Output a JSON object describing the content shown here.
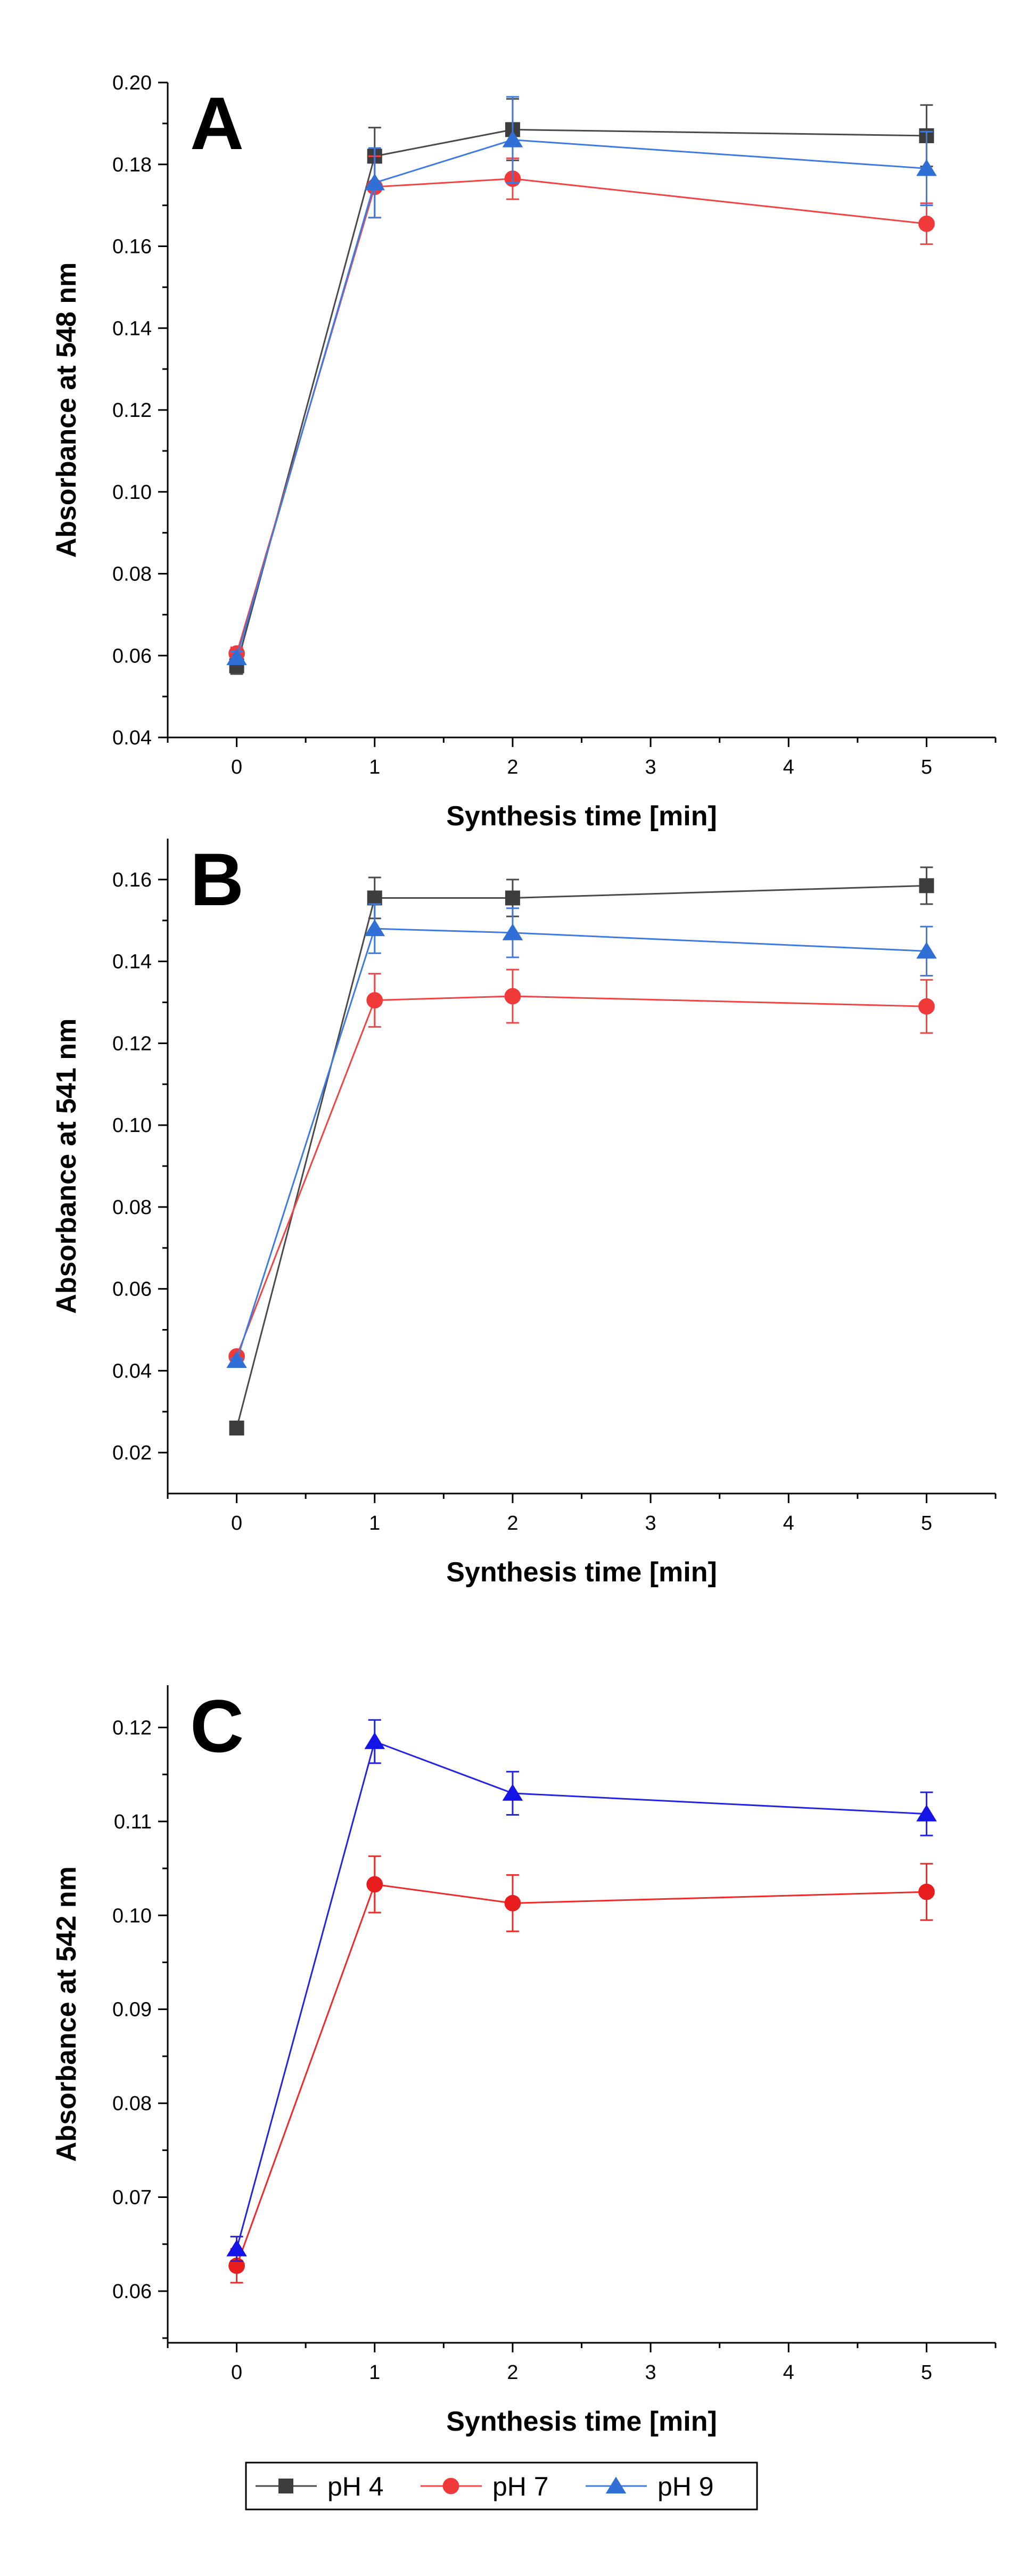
{
  "chart_data": [
    {
      "type": "line",
      "panel_label": "A",
      "xlabel": "Synthesis time [min]",
      "ylabel": "Absorbance at 548 nm",
      "xlim": [
        -0.5,
        5.5
      ],
      "ylim": [
        0.04,
        0.2
      ],
      "x_ticks": [
        0,
        1,
        2,
        3,
        4,
        5
      ],
      "y_ticks": [
        0.04,
        0.06,
        0.08,
        0.1,
        0.12,
        0.14,
        0.16,
        0.18,
        0.2
      ],
      "x_tick_labels": [
        "0",
        "1",
        "2",
        "3",
        "4",
        "5"
      ],
      "y_tick_labels": [
        "0.04",
        "0.06",
        "0.08",
        "0.10",
        "0.12",
        "0.14",
        "0.16",
        "0.18",
        "0.20"
      ],
      "x": [
        0,
        1,
        2,
        5
      ],
      "series": [
        {
          "key": "ph4",
          "values": [
            0.0575,
            0.182,
            0.1885,
            0.187
          ],
          "errors": [
            0.002,
            0.007,
            0.0075,
            0.0075
          ]
        },
        {
          "key": "ph7",
          "values": [
            0.0605,
            0.1745,
            0.1765,
            0.1655
          ],
          "errors": [
            0.0015,
            0.0075,
            0.005,
            0.005
          ]
        },
        {
          "key": "ph9",
          "values": [
            0.0595,
            0.1755,
            0.186,
            0.179
          ],
          "errors": [
            0.0015,
            0.0085,
            0.0105,
            0.009
          ]
        }
      ]
    },
    {
      "type": "line",
      "panel_label": "B",
      "xlabel": "Synthesis time [min]",
      "ylabel": "Absorbance at 541 nm",
      "xlim": [
        -0.5,
        5.5
      ],
      "ylim": [
        0.01,
        0.17
      ],
      "x_ticks": [
        0,
        1,
        2,
        3,
        4,
        5
      ],
      "y_ticks": [
        0.02,
        0.04,
        0.06,
        0.08,
        0.1,
        0.12,
        0.14,
        0.16
      ],
      "x_tick_labels": [
        "0",
        "1",
        "2",
        "3",
        "4",
        "5"
      ],
      "y_tick_labels": [
        "0.02",
        "0.04",
        "0.06",
        "0.08",
        "0.10",
        "0.12",
        "0.14",
        "0.16"
      ],
      "x": [
        0,
        1,
        2,
        5
      ],
      "series": [
        {
          "key": "ph4",
          "values": [
            0.026,
            0.1555,
            0.1555,
            0.1585
          ],
          "errors": [
            0.0005,
            0.005,
            0.0045,
            0.0045
          ]
        },
        {
          "key": "ph7",
          "values": [
            0.0435,
            0.1305,
            0.1315,
            0.129
          ],
          "errors": [
            0.001,
            0.0065,
            0.0065,
            0.0065
          ]
        },
        {
          "key": "ph9",
          "values": [
            0.0425,
            0.148,
            0.147,
            0.1425
          ],
          "errors": [
            0.0005,
            0.006,
            0.006,
            0.006
          ]
        }
      ]
    },
    {
      "type": "line",
      "panel_label": "C",
      "xlabel": "Synthesis time [min]",
      "ylabel": "Absorbance at 542 nm",
      "xlim": [
        -0.5,
        5.5
      ],
      "ylim": [
        0.0545,
        0.1245
      ],
      "x_ticks": [
        0,
        1,
        2,
        3,
        4,
        5
      ],
      "y_ticks": [
        0.06,
        0.07,
        0.08,
        0.09,
        0.1,
        0.11,
        0.12
      ],
      "x_tick_labels": [
        "0",
        "1",
        "2",
        "3",
        "4",
        "5"
      ],
      "y_tick_labels": [
        "0.06",
        "0.07",
        "0.08",
        "0.09",
        "0.10",
        "0.11",
        "0.12"
      ],
      "x": [
        0,
        1,
        2,
        5
      ],
      "series": [
        {
          "key": "ph7",
          "values": [
            0.0627,
            0.1033,
            0.1013,
            0.1025
          ],
          "errors": [
            0.0018,
            0.003,
            0.003,
            0.003
          ]
        },
        {
          "key": "ph9",
          "values": [
            0.0645,
            0.1185,
            0.113,
            0.1108
          ],
          "errors": [
            0.0013,
            0.0023,
            0.0023,
            0.0023
          ]
        }
      ]
    }
  ],
  "series_styles": {
    "ph4": {
      "marker": "square",
      "color": "#3d3d3d",
      "line_color": "#4a4a4a"
    },
    "ph7": {
      "marker": "circle",
      "color": "#f03a3a",
      "line_color": "#f04545"
    },
    "ph9": {
      "marker": "triangle",
      "color": "#2f6fd6",
      "line_color": "#3f7ae0"
    }
  },
  "panel_overrides": {
    "C": {
      "ph9": {
        "color": "#1414e6",
        "line_color": "#2323e0"
      },
      "ph7": {
        "color": "#e81e1e",
        "line_color": "#ee2a2a"
      }
    }
  },
  "legend": {
    "position": "bottom-center",
    "entries": [
      {
        "key": "ph4",
        "label": "pH 4"
      },
      {
        "key": "ph7",
        "label": "pH 7"
      },
      {
        "key": "ph9",
        "label": "pH 9"
      }
    ]
  }
}
